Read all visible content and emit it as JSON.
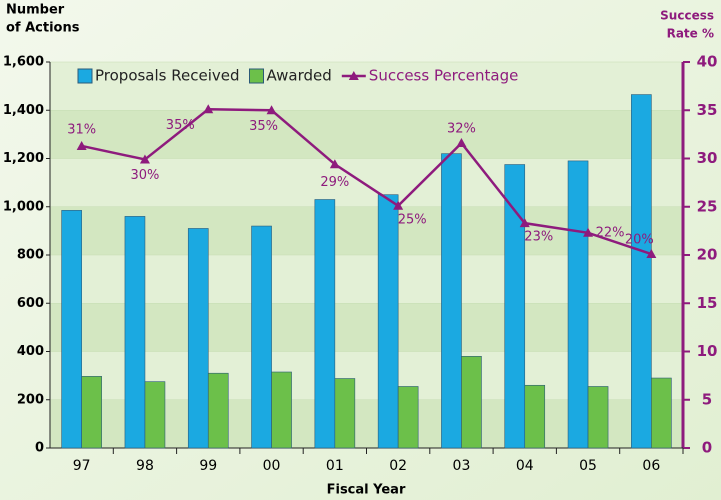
{
  "chart_data": {
    "type": "bar_line",
    "y_label": [
      "Number",
      "of Actions"
    ],
    "y2_label": [
      "Success",
      "Rate %"
    ],
    "x_label": "Fiscal Year",
    "categories": [
      "97",
      "98",
      "99",
      "00",
      "01",
      "02",
      "03",
      "04",
      "05",
      "06"
    ],
    "series": [
      {
        "name": "Proposals Received",
        "color": "#1ba9e1",
        "type": "bar",
        "values": [
          985,
          960,
          910,
          920,
          1030,
          1050,
          1220,
          1175,
          1190,
          1465
        ]
      },
      {
        "name": "Awarded",
        "color": "#6cc04a",
        "type": "bar",
        "values": [
          297,
          275,
          310,
          315,
          288,
          255,
          380,
          260,
          255,
          290
        ]
      },
      {
        "name": "Success Percentage",
        "color": "#8e1b7d",
        "type": "line",
        "axis": "y2",
        "values": [
          31.3,
          29.9,
          35.1,
          35,
          29.4,
          25.1,
          31.6,
          23.3,
          22.3,
          20.1
        ],
        "value_labels": [
          "31%",
          "30%",
          "35%",
          "35%",
          "29%",
          "25%",
          "32%",
          "23%",
          "22%",
          "20%"
        ]
      }
    ],
    "ylim": [
      0,
      1600
    ],
    "yticks": [
      0,
      200,
      400,
      600,
      800,
      {
        "value": 1000,
        "label": "1,000"
      },
      {
        "value": 1200,
        "label": "1,200"
      },
      {
        "value": 1400,
        "label": "1,400"
      },
      {
        "value": 1600,
        "label": "1,600"
      }
    ],
    "y2lim": [
      0,
      40
    ],
    "y2ticks": [
      0,
      5,
      10,
      15,
      20,
      25,
      30,
      35,
      40
    ],
    "grid": true,
    "legend": "top-left"
  }
}
